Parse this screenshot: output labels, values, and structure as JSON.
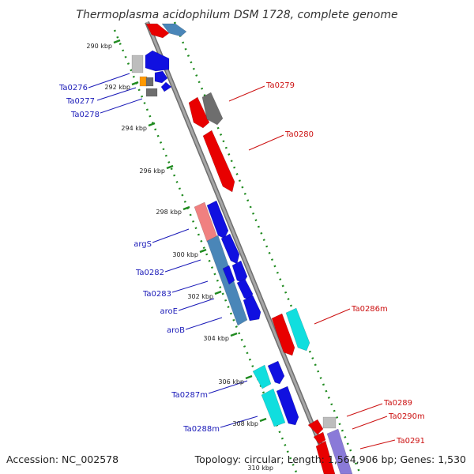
{
  "title": "Thermoplasma acidophilum DSM 1728, complete genome",
  "accession": "Accession: NC_002578",
  "topology": "Topology: circular; Length: 1,564,906 bp; Genes: 1,530",
  "colors": {
    "backbone": "#8a8a8a",
    "tick_dots": "#1f8a1f",
    "red": "#e80000",
    "blue": "#1010e0",
    "steelblue": "#4a86b8",
    "gray": "#6e6e6e",
    "lightgray": "#bdbdbd",
    "cyan": "#10dede",
    "orange": "#ff9a00",
    "pink": "#f08080",
    "lavender": "#8a7ad8",
    "forward_label": "#1a1ab8",
    "reverse_label": "#cc1111"
  },
  "ticks": [
    "290 kbp",
    "292 kbp",
    "294 kbp",
    "296 kbp",
    "298 kbp",
    "300 kbp",
    "302 kbp",
    "304 kbp",
    "306 kbp",
    "308 kbp",
    "310 kbp"
  ],
  "forward_labels": [
    "Ta0276",
    "Ta0277",
    "Ta0278",
    "argS",
    "Ta0282",
    "Ta0283",
    "aroE",
    "aroB",
    "Ta0287m",
    "Ta0288m"
  ],
  "reverse_labels": [
    "Ta0279",
    "Ta0280",
    "Ta0286m",
    "Ta0289",
    "Ta0290m",
    "Ta0291"
  ]
}
